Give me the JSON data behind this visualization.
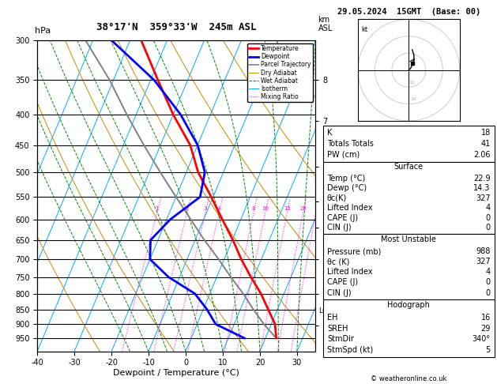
{
  "title_left": "38°17'N  359°33'W  245m ASL",
  "title_date": "29.05.2024  15GMT  (Base: 00)",
  "xlabel": "Dewpoint / Temperature (°C)",
  "ylabel_left": "hPa",
  "pressure_levels": [
    300,
    350,
    400,
    450,
    500,
    550,
    600,
    650,
    700,
    750,
    800,
    850,
    900,
    950
  ],
  "t_min": -40,
  "t_max": 35,
  "p_min": 300,
  "p_max": 1000,
  "skew_factor": 35.0,
  "temperature_data": {
    "pressure": [
      950,
      900,
      850,
      800,
      750,
      700,
      650,
      600,
      550,
      500,
      450,
      400,
      350,
      300
    ],
    "temp": [
      22.9,
      21.0,
      17.5,
      13.8,
      9.2,
      4.6,
      0.2,
      -5.0,
      -10.5,
      -16.8,
      -22.0,
      -30.0,
      -38.0,
      -47.0
    ]
  },
  "dewpoint_data": {
    "pressure": [
      950,
      900,
      850,
      800,
      750,
      700,
      650,
      600,
      550,
      500,
      450,
      400,
      350,
      300
    ],
    "dewp": [
      14.3,
      5.0,
      1.0,
      -4.0,
      -13.0,
      -20.0,
      -22.0,
      -19.0,
      -13.5,
      -15.0,
      -20.0,
      -28.0,
      -39.0,
      -55.0
    ]
  },
  "parcel_data": {
    "pressure": [
      950,
      900,
      850,
      800,
      750,
      700,
      650,
      600,
      550,
      500,
      450,
      400,
      350,
      300
    ],
    "temp": [
      22.9,
      18.0,
      13.5,
      9.0,
      3.8,
      -1.5,
      -7.5,
      -13.5,
      -20.0,
      -27.0,
      -34.5,
      -42.5,
      -51.0,
      -62.0
    ]
  },
  "mixing_ratio_values": [
    1,
    2,
    3,
    4,
    8,
    10,
    15,
    20,
    25
  ],
  "kappa": 0.2854,
  "dry_adiabat_thetas": [
    230,
    250,
    270,
    290,
    310,
    330,
    350,
    370,
    390,
    410,
    430,
    450,
    470
  ],
  "moist_adiabat_starts": [
    -15,
    -10,
    -5,
    0,
    5,
    10,
    15,
    20,
    25,
    30,
    35
  ],
  "legend_items": [
    {
      "label": "Temperature",
      "color": "#ff0000",
      "linestyle": "-",
      "linewidth": 2.0
    },
    {
      "label": "Dewpoint",
      "color": "#0000ff",
      "linestyle": "-",
      "linewidth": 2.0
    },
    {
      "label": "Parcel Trajectory",
      "color": "#808080",
      "linestyle": "-",
      "linewidth": 1.2
    },
    {
      "label": "Dry Adiabat",
      "color": "#cc8800",
      "linestyle": "-",
      "linewidth": 0.7
    },
    {
      "label": "Wet Adiabat",
      "color": "#008800",
      "linestyle": "--",
      "linewidth": 0.7
    },
    {
      "label": "Isotherm",
      "color": "#00aaff",
      "linestyle": "-",
      "linewidth": 0.7
    },
    {
      "label": "Mixing Ratio",
      "color": "#ff00ff",
      "linestyle": ":",
      "linewidth": 0.7
    }
  ],
  "isotherm_color": "#00aaff",
  "dry_adiabat_color": "#cc8800",
  "wet_adiabat_color": "#008800",
  "mixing_ratio_color": "#ff00ff",
  "temp_color": "#ff0000",
  "dewp_color": "#0000ff",
  "parcel_color": "#808080",
  "km_ticks": {
    "8": 350,
    "7": 410,
    "6": 490,
    "5": 560,
    "4": 620,
    "3": 700,
    "2": 800,
    "1": 905
  },
  "lcl_pressure": 855,
  "info": {
    "K": 18,
    "Totals Totals": 41,
    "PW (cm)": 2.06,
    "surf_temp": 22.9,
    "surf_dewp": 14.3,
    "surf_thetae": 327,
    "surf_li": 4,
    "surf_cape": 0,
    "surf_cin": 0,
    "mu_pressure": 988,
    "mu_thetae": 327,
    "mu_li": 4,
    "mu_cape": 0,
    "mu_cin": 0,
    "hodo_eh": 16,
    "hodo_sreh": 29,
    "hodo_stmdir": "340°",
    "hodo_stmspd": 5
  },
  "copyright": "© weatheronline.co.uk",
  "background_color": "#ffffff"
}
